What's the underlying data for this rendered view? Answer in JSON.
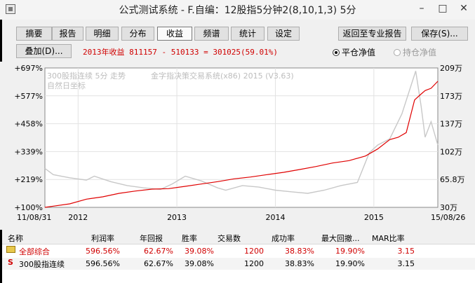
{
  "window": {
    "title": "公式测试系统 - F.自编：12股指5分钟2(8,10,1,3) 5分",
    "minimize": "–",
    "maximize": "□",
    "close": "✕"
  },
  "toolbar": {
    "tabs": [
      {
        "label": "摘要",
        "active": false
      },
      {
        "label": "报告",
        "active": false
      },
      {
        "label": "明细",
        "active": false
      },
      {
        "label": "分布",
        "active": false
      },
      {
        "label": "收益",
        "active": true
      },
      {
        "label": "频谱",
        "active": false
      },
      {
        "label": "统计",
        "active": false
      },
      {
        "label": "设定",
        "active": false
      }
    ],
    "return_label": "返回至专业报告",
    "save_label": "保存(S)..."
  },
  "row2": {
    "overlay_label": "叠加(D)...",
    "summary": "2013年收益 811157 - 510133 = 301025(59.01%)",
    "radio_flat": "平仓净值",
    "radio_hold": "持仓净值"
  },
  "chart": {
    "legend_line1": "300股指连续 5分 走势",
    "legend_line2": "自然日坐标",
    "system_label": "金字指决策交易系统(x86) 2015 (V3.63)",
    "left_ticks": [
      "+697%",
      "+577%",
      "+458%",
      "+339%",
      "+219%",
      "+100%"
    ],
    "right_ticks": [
      "209万",
      "173万",
      "137万",
      "102万",
      "65.8万",
      "30万"
    ],
    "x_labels": [
      "2012",
      "2013",
      "2014",
      "2015"
    ],
    "start_date": "11/08/31",
    "end_date": "15/08/26",
    "colors": {
      "equity": "#e00000",
      "price": "#c8c8c8",
      "grid": "#e2e2e2"
    }
  },
  "chart_data": {
    "type": "line",
    "title": "",
    "xlabel": "",
    "ylabel": "",
    "x_range": [
      "2011-08-31",
      "2015-08-26"
    ],
    "ylim_left_percent": [
      100,
      697
    ],
    "ylim_right_wan": [
      30,
      209
    ],
    "series": [
      {
        "name": "",
        "axis": "left",
        "x": [
          "2011-08-31",
          "2011-10-01",
          "2011-12-01",
          "2012-02-01",
          "2012-04-01",
          "2012-06-01",
          "2012-08-01",
          "2012-10-01",
          "2012-12-01",
          "2013-02-01",
          "2013-04-01",
          "2013-06-01",
          "2013-08-01",
          "2013-10-01",
          "2013-12-01",
          "2014-02-01",
          "2014-04-01",
          "2014-06-01",
          "2014-08-01",
          "2014-10-01",
          "2014-12-01",
          "2015-01-15",
          "2015-03-01",
          "2015-04-01",
          "2015-05-01",
          "2015-06-01",
          "2015-06-20",
          "2015-07-10",
          "2015-08-01",
          "2015-08-26"
        ],
        "y": [
          100,
          105,
          115,
          135,
          145,
          160,
          170,
          178,
          180,
          190,
          200,
          210,
          222,
          230,
          240,
          250,
          262,
          275,
          290,
          300,
          320,
          350,
          390,
          400,
          420,
          560,
          580,
          600,
          610,
          640
        ]
      },
      {
        "name": "300股指连续",
        "axis": "right",
        "x": [
          "2011-08-31",
          "2011-10-01",
          "2011-12-01",
          "2012-02-01",
          "2012-03-01",
          "2012-05-01",
          "2012-07-01",
          "2012-09-01",
          "2012-11-01",
          "2012-12-15",
          "2013-02-01",
          "2013-04-01",
          "2013-06-01",
          "2013-07-01",
          "2013-09-01",
          "2013-11-01",
          "2014-01-01",
          "2014-03-01",
          "2014-05-01",
          "2014-07-01",
          "2014-09-01",
          "2014-11-01",
          "2014-12-15",
          "2015-01-15",
          "2015-03-01",
          "2015-04-15",
          "2015-06-05",
          "2015-06-25",
          "2015-07-10",
          "2015-08-01",
          "2015-08-26"
        ],
        "y": [
          80,
          72,
          68,
          65,
          70,
          63,
          58,
          55,
          53,
          60,
          70,
          64,
          55,
          52,
          58,
          56,
          52,
          50,
          48,
          52,
          58,
          62,
          100,
          110,
          118,
          150,
          205,
          160,
          120,
          140,
          110
        ]
      }
    ]
  },
  "table": {
    "headers": [
      "名称",
      "利润率",
      "年回报",
      "胜率",
      "交易数",
      "成功率",
      "最大回撤...",
      "MAR比率"
    ],
    "rows": [
      {
        "icon": "folder",
        "name": "全部综合",
        "values": [
          "596.56%",
          "62.67%",
          "39.08%",
          "1200",
          "38.83%",
          "19.90%",
          "3.15"
        ]
      },
      {
        "icon": "S",
        "name": "300股指连续",
        "values": [
          "596.56%",
          "62.67%",
          "39.08%",
          "1200",
          "38.83%",
          "19.90%",
          "3.15"
        ]
      }
    ]
  }
}
